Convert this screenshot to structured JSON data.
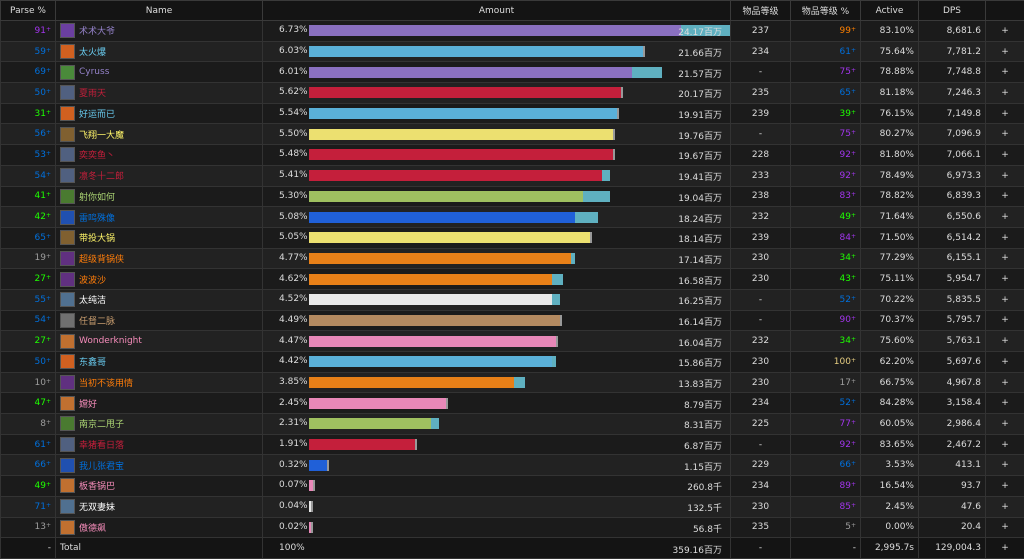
{
  "headers": [
    "Parse %",
    "Name",
    "Amount",
    "物品等级",
    "物品等级 %",
    "Active",
    "DPS"
  ],
  "rows": [
    {
      "parse": "91",
      "parse_color": "#a335ee",
      "name": "术术大爷",
      "name_color": "#9482c9",
      "pct": "6.73%",
      "frac": 0.98,
      "sec": 0.16,
      "bar_color": "#8a70c0",
      "amount": "24.17百万",
      "ilvl": "237",
      "ilvlp": "99",
      "ilvlp_color": "#ff8000",
      "active": "83.10%",
      "dps": "8,681.6",
      "icon": "warlock-icon",
      "icon_color": "#6b3fa0"
    },
    {
      "parse": "59",
      "parse_color": "#0070dd",
      "name": "太火爆",
      "name_color": "#69ccf0",
      "pct": "6.03%",
      "frac": 0.88,
      "sec": 0.0,
      "bar_color": "#5ab0d8",
      "amount": "21.66百万",
      "ilvl": "234",
      "ilvlp": "61",
      "ilvlp_color": "#0070dd",
      "active": "75.64%",
      "dps": "7,781.2",
      "icon": "mage-fire-icon",
      "icon_color": "#d06020"
    },
    {
      "parse": "69",
      "parse_color": "#0070dd",
      "name": "Cyruss",
      "name_color": "#9482c9",
      "pct": "6.01%",
      "frac": 0.85,
      "sec": 0.08,
      "bar_color": "#8a70c0",
      "amount": "21.57百万",
      "ilvl": "-",
      "ilvlp": "75",
      "ilvlp_color": "#a335ee",
      "active": "78.88%",
      "dps": "7,748.8",
      "icon": "warlock-icon",
      "icon_color": "#4a8a3a"
    },
    {
      "parse": "50",
      "parse_color": "#0070dd",
      "name": "夏雨天",
      "name_color": "#c41f3b",
      "pct": "5.62%",
      "frac": 0.82,
      "sec": 0.0,
      "bar_color": "#c41f3b",
      "amount": "20.17百万",
      "ilvl": "235",
      "ilvlp": "65",
      "ilvlp_color": "#0070dd",
      "active": "81.18%",
      "dps": "7,246.3",
      "icon": "deathknight-icon",
      "icon_color": "#506080"
    },
    {
      "parse": "31",
      "parse_color": "#1eff00",
      "name": "好运而已",
      "name_color": "#69ccf0",
      "pct": "5.54%",
      "frac": 0.81,
      "sec": 0.0,
      "bar_color": "#5ab0d8",
      "amount": "19.91百万",
      "ilvl": "239",
      "ilvlp": "39",
      "ilvlp_color": "#1eff00",
      "active": "76.15%",
      "dps": "7,149.8",
      "icon": "mage-fire-icon",
      "icon_color": "#d06020"
    },
    {
      "parse": "56",
      "parse_color": "#0070dd",
      "name": "飞翔一大魔",
      "name_color": "#fff569",
      "pct": "5.50%",
      "frac": 0.8,
      "sec": 0.0,
      "bar_color": "#ece070",
      "amount": "19.76百万",
      "ilvl": "-",
      "ilvlp": "75",
      "ilvlp_color": "#a335ee",
      "active": "80.27%",
      "dps": "7,096.9",
      "icon": "rogue-icon",
      "icon_color": "#806030"
    },
    {
      "parse": "53",
      "parse_color": "#0070dd",
      "name": "奕奕鱼丶",
      "name_color": "#c41f3b",
      "pct": "5.48%",
      "frac": 0.8,
      "sec": 0.0,
      "bar_color": "#c41f3b",
      "amount": "19.67百万",
      "ilvl": "228",
      "ilvlp": "92",
      "ilvlp_color": "#a335ee",
      "active": "81.80%",
      "dps": "7,066.1",
      "icon": "deathknight-icon",
      "icon_color": "#506080"
    },
    {
      "parse": "54",
      "parse_color": "#0070dd",
      "name": "凛冬十二郎",
      "name_color": "#c41f3b",
      "pct": "5.41%",
      "frac": 0.77,
      "sec": 0.02,
      "bar_color": "#c41f3b",
      "amount": "19.41百万",
      "ilvl": "233",
      "ilvlp": "92",
      "ilvlp_color": "#a335ee",
      "active": "78.49%",
      "dps": "6,973.3",
      "icon": "deathknight-icon",
      "icon_color": "#506080"
    },
    {
      "parse": "41",
      "parse_color": "#1eff00",
      "name": "射你如何",
      "name_color": "#abd473",
      "pct": "5.30%",
      "frac": 0.72,
      "sec": 0.07,
      "bar_color": "#9fc060",
      "amount": "19.04百万",
      "ilvl": "238",
      "ilvlp": "83",
      "ilvlp_color": "#a335ee",
      "active": "78.82%",
      "dps": "6,839.3",
      "icon": "hunter-icon",
      "icon_color": "#4a7a30"
    },
    {
      "parse": "42",
      "parse_color": "#1eff00",
      "name": "雷鸣殊像",
      "name_color": "#0070de",
      "pct": "5.08%",
      "frac": 0.7,
      "sec": 0.06,
      "bar_color": "#2060d8",
      "amount": "18.24百万",
      "ilvl": "232",
      "ilvlp": "49",
      "ilvlp_color": "#1eff00",
      "active": "71.64%",
      "dps": "6,550.6",
      "icon": "shaman-icon",
      "icon_color": "#2050b0"
    },
    {
      "parse": "65",
      "parse_color": "#0070dd",
      "name": "带投大锅",
      "name_color": "#fff569",
      "pct": "5.05%",
      "frac": 0.74,
      "sec": 0.0,
      "bar_color": "#ece070",
      "amount": "18.14百万",
      "ilvl": "239",
      "ilvlp": "84",
      "ilvlp_color": "#a335ee",
      "active": "71.50%",
      "dps": "6,514.2",
      "icon": "rogue-icon",
      "icon_color": "#806030"
    },
    {
      "parse": "19",
      "parse_color": "#9d9d9d",
      "name": "超级背锅侠",
      "name_color": "#ff7d0a",
      "pct": "4.77%",
      "frac": 0.69,
      "sec": 0.01,
      "bar_color": "#e88018",
      "amount": "17.14百万",
      "ilvl": "230",
      "ilvlp": "34",
      "ilvlp_color": "#1eff00",
      "active": "77.29%",
      "dps": "6,155.1",
      "icon": "druid-icon",
      "icon_color": "#603080"
    },
    {
      "parse": "27",
      "parse_color": "#1eff00",
      "name": "波波沙",
      "name_color": "#ff7d0a",
      "pct": "4.62%",
      "frac": 0.64,
      "sec": 0.03,
      "bar_color": "#e88018",
      "amount": "16.58百万",
      "ilvl": "230",
      "ilvlp": "43",
      "ilvlp_color": "#1eff00",
      "active": "75.11%",
      "dps": "5,954.7",
      "icon": "druid-icon",
      "icon_color": "#603080"
    },
    {
      "parse": "55",
      "parse_color": "#0070dd",
      "name": "太纯洁",
      "name_color": "#ffffff",
      "pct": "4.52%",
      "frac": 0.64,
      "sec": 0.02,
      "bar_color": "#e8e8e8",
      "amount": "16.25百万",
      "ilvl": "-",
      "ilvlp": "52",
      "ilvlp_color": "#0070dd",
      "active": "70.22%",
      "dps": "5,835.5",
      "icon": "priest-icon",
      "icon_color": "#507090"
    },
    {
      "parse": "54",
      "parse_color": "#0070dd",
      "name": "任督二脉",
      "name_color": "#c79c6e",
      "pct": "4.49%",
      "frac": 0.66,
      "sec": 0.0,
      "bar_color": "#b48a60",
      "amount": "16.14百万",
      "ilvl": "-",
      "ilvlp": "90",
      "ilvlp_color": "#a335ee",
      "active": "70.37%",
      "dps": "5,795.7",
      "icon": "warrior-icon",
      "icon_color": "#707070"
    },
    {
      "parse": "27",
      "parse_color": "#1eff00",
      "name": "Wonderknight",
      "name_color": "#f58cba",
      "pct": "4.47%",
      "frac": 0.65,
      "sec": 0.0,
      "bar_color": "#e888b8",
      "amount": "16.04百万",
      "ilvl": "232",
      "ilvlp": "34",
      "ilvlp_color": "#1eff00",
      "active": "75.60%",
      "dps": "5,763.1",
      "icon": "paladin-icon",
      "icon_color": "#c07030"
    },
    {
      "parse": "50",
      "parse_color": "#0070dd",
      "name": "东鑫哥",
      "name_color": "#69ccf0",
      "pct": "4.42%",
      "frac": 0.64,
      "sec": 0.01,
      "bar_color": "#5ab0d8",
      "amount": "15.86百万",
      "ilvl": "230",
      "ilvlp": "100",
      "ilvlp_color": "#e5cc80",
      "active": "62.20%",
      "dps": "5,697.6",
      "icon": "mage-fire-icon",
      "icon_color": "#d06020"
    },
    {
      "parse": "10",
      "parse_color": "#9d9d9d",
      "name": "当初不该用情",
      "name_color": "#ff7d0a",
      "pct": "3.85%",
      "frac": 0.54,
      "sec": 0.03,
      "bar_color": "#e88018",
      "amount": "13.83百万",
      "ilvl": "230",
      "ilvlp": "17",
      "ilvlp_color": "#9d9d9d",
      "active": "66.75%",
      "dps": "4,967.8",
      "icon": "druid-icon",
      "icon_color": "#603080"
    },
    {
      "parse": "47",
      "parse_color": "#1eff00",
      "name": "嫦好",
      "name_color": "#f58cba",
      "pct": "2.45%",
      "frac": 0.36,
      "sec": 0.0,
      "bar_color": "#e888b8",
      "amount": "8.79百万",
      "ilvl": "234",
      "ilvlp": "52",
      "ilvlp_color": "#0070dd",
      "active": "84.28%",
      "dps": "3,158.4",
      "icon": "paladin-icon",
      "icon_color": "#c07030"
    },
    {
      "parse": "8",
      "parse_color": "#9d9d9d",
      "name": "南京二甩子",
      "name_color": "#abd473",
      "pct": "2.31%",
      "frac": 0.32,
      "sec": 0.02,
      "bar_color": "#9fc060",
      "amount": "8.31百万",
      "ilvl": "225",
      "ilvlp": "77",
      "ilvlp_color": "#a335ee",
      "active": "60.05%",
      "dps": "2,986.4",
      "icon": "hunter-icon",
      "icon_color": "#4a7a30"
    },
    {
      "parse": "61",
      "parse_color": "#0070dd",
      "name": "幸猪看日落",
      "name_color": "#c41f3b",
      "pct": "1.91%",
      "frac": 0.28,
      "sec": 0.0,
      "bar_color": "#c41f3b",
      "amount": "6.87百万",
      "ilvl": "-",
      "ilvlp": "92",
      "ilvlp_color": "#a335ee",
      "active": "83.65%",
      "dps": "2,467.2",
      "icon": "deathknight-icon",
      "icon_color": "#506080"
    },
    {
      "parse": "66",
      "parse_color": "#0070dd",
      "name": "我儿张君宝",
      "name_color": "#0070de",
      "pct": "0.32%",
      "frac": 0.047,
      "sec": 0.0,
      "bar_color": "#2060d8",
      "amount": "1.15百万",
      "ilvl": "229",
      "ilvlp": "66",
      "ilvlp_color": "#0070dd",
      "active": "3.53%",
      "dps": "413.1",
      "icon": "shaman-icon",
      "icon_color": "#2050b0"
    },
    {
      "parse": "49",
      "parse_color": "#1eff00",
      "name": "板香锅巴",
      "name_color": "#f58cba",
      "pct": "0.07%",
      "frac": 0.011,
      "sec": 0.0,
      "bar_color": "#e888b8",
      "amount": "260.8千",
      "ilvl": "234",
      "ilvlp": "89",
      "ilvlp_color": "#a335ee",
      "active": "16.54%",
      "dps": "93.7",
      "icon": "paladin-icon",
      "icon_color": "#c07030"
    },
    {
      "parse": "71",
      "parse_color": "#0070dd",
      "name": "无双妻妹",
      "name_color": "#ffffff",
      "pct": "0.04%",
      "frac": 0.006,
      "sec": 0.0,
      "bar_color": "#e8e8e8",
      "amount": "132.5千",
      "ilvl": "230",
      "ilvlp": "85",
      "ilvlp_color": "#a335ee",
      "active": "2.45%",
      "dps": "47.6",
      "icon": "priest-icon",
      "icon_color": "#507090"
    },
    {
      "parse": "13",
      "parse_color": "#9d9d9d",
      "name": "傲德飙",
      "name_color": "#f58cba",
      "pct": "0.02%",
      "frac": 0.003,
      "sec": 0.0,
      "bar_color": "#e888b8",
      "amount": "56.8千",
      "ilvl": "235",
      "ilvlp": "5",
      "ilvlp_color": "#9d9d9d",
      "active": "0.00%",
      "dps": "20.4",
      "icon": "paladin-icon",
      "icon_color": "#c07030"
    }
  ],
  "secondary_bar_color": "#5fb0c0",
  "plus_label": "+",
  "total": {
    "parse": "-",
    "name": "Total",
    "pct": "100%",
    "amount": "359.16百万",
    "ilvl": "-",
    "ilvlp": "-",
    "active": "2,995.7s",
    "dps": "129,004.3",
    "plus": "+"
  }
}
